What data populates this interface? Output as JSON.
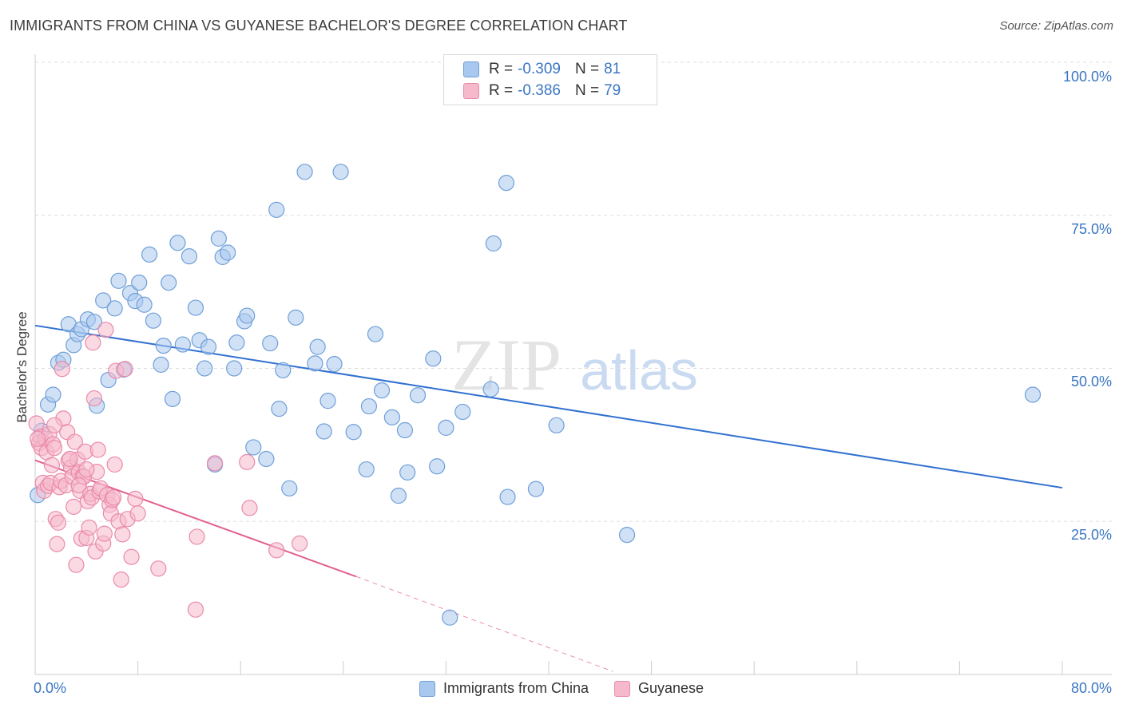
{
  "title": "IMMIGRANTS FROM CHINA VS GUYANESE BACHELOR'S DEGREE CORRELATION CHART",
  "source": "Source: ZipAtlas.com",
  "watermark": {
    "zip": "ZIP",
    "atlas": "atlas"
  },
  "legend_top": {
    "rows": [
      {
        "r_label": "R =",
        "r_value": "-0.309",
        "n_label": "N =",
        "n_value": "81"
      },
      {
        "r_label": "R =",
        "r_value": "-0.386",
        "n_label": "N =",
        "n_value": "79"
      }
    ]
  },
  "colors": {
    "china_fill": "#a9c8ef",
    "china_stroke": "#6f9fd8",
    "china_line": "#3070d0",
    "guyanese_fill": "#f6b9cc",
    "guyanese_stroke": "#ea8aaa",
    "guyanese_line": "#e06090",
    "grid": "#dddddd",
    "tick_text": "#3a76c4"
  },
  "chart_data": {
    "type": "scatter",
    "title": "IMMIGRANTS FROM CHINA VS GUYANESE BACHELOR'S DEGREE CORRELATION CHART",
    "xlabel": "",
    "ylabel": "Bachelor's Degree",
    "xlim": [
      0,
      80
    ],
    "ylim": [
      0,
      100
    ],
    "x_tick_labels": [
      "0.0%",
      "80.0%"
    ],
    "y_tick_labels": [
      "100.0%",
      "75.0%",
      "50.0%",
      "25.0%"
    ],
    "y_ticks": [
      100,
      75,
      50,
      25
    ],
    "grid": true,
    "legend_position": "top-center",
    "series": [
      {
        "name": "Immigrants from China",
        "r": -0.309,
        "n": 81,
        "trend": {
          "x0": 0,
          "y0": 57.0,
          "x1": 80,
          "y1": 30.5
        },
        "points": [
          [
            0.2,
            29.3
          ],
          [
            0.5,
            39.8
          ],
          [
            1.0,
            44.1
          ],
          [
            1.4,
            45.7
          ],
          [
            1.8,
            50.9
          ],
          [
            2.2,
            51.4
          ],
          [
            2.6,
            57.2
          ],
          [
            3.0,
            53.8
          ],
          [
            3.3,
            55.6
          ],
          [
            3.6,
            56.4
          ],
          [
            4.1,
            58.0
          ],
          [
            4.6,
            57.6
          ],
          [
            4.8,
            43.9
          ],
          [
            5.7,
            48.1
          ],
          [
            5.3,
            61.1
          ],
          [
            6.2,
            59.8
          ],
          [
            6.5,
            64.3
          ],
          [
            6.9,
            49.8
          ],
          [
            7.4,
            62.3
          ],
          [
            7.8,
            61.0
          ],
          [
            8.1,
            64.0
          ],
          [
            8.5,
            60.4
          ],
          [
            8.9,
            68.6
          ],
          [
            9.2,
            57.8
          ],
          [
            9.8,
            50.6
          ],
          [
            10.0,
            53.7
          ],
          [
            10.4,
            64.0
          ],
          [
            10.7,
            45.0
          ],
          [
            11.1,
            70.5
          ],
          [
            11.5,
            53.9
          ],
          [
            12.0,
            68.3
          ],
          [
            12.5,
            59.9
          ],
          [
            12.8,
            54.6
          ],
          [
            13.2,
            50.0
          ],
          [
            13.5,
            53.5
          ],
          [
            14.0,
            34.3
          ],
          [
            14.3,
            71.2
          ],
          [
            14.6,
            68.2
          ],
          [
            15.0,
            68.9
          ],
          [
            15.5,
            50.0
          ],
          [
            15.7,
            54.2
          ],
          [
            16.3,
            57.7
          ],
          [
            16.5,
            58.6
          ],
          [
            17.0,
            37.1
          ],
          [
            18.0,
            35.2
          ],
          [
            18.3,
            54.1
          ],
          [
            18.8,
            75.9
          ],
          [
            19.0,
            43.4
          ],
          [
            19.3,
            49.7
          ],
          [
            19.8,
            30.4
          ],
          [
            20.3,
            58.3
          ],
          [
            21.0,
            82.1
          ],
          [
            21.8,
            50.8
          ],
          [
            22.0,
            53.5
          ],
          [
            22.5,
            39.7
          ],
          [
            22.8,
            44.7
          ],
          [
            23.3,
            50.7
          ],
          [
            23.8,
            82.1
          ],
          [
            24.8,
            39.6
          ],
          [
            25.8,
            33.5
          ],
          [
            26.0,
            43.8
          ],
          [
            26.5,
            55.6
          ],
          [
            27.0,
            46.4
          ],
          [
            27.8,
            42.0
          ],
          [
            28.3,
            29.2
          ],
          [
            28.8,
            39.9
          ],
          [
            29.0,
            33.0
          ],
          [
            29.8,
            45.6
          ],
          [
            31.0,
            51.6
          ],
          [
            31.3,
            34.0
          ],
          [
            32.0,
            40.3
          ],
          [
            32.3,
            9.3
          ],
          [
            33.3,
            42.9
          ],
          [
            35.7,
            70.4
          ],
          [
            35.5,
            46.6
          ],
          [
            36.7,
            80.3
          ],
          [
            36.8,
            29.0
          ],
          [
            39.0,
            30.3
          ],
          [
            40.6,
            40.7
          ],
          [
            46.1,
            22.8
          ],
          [
            77.7,
            45.7
          ]
        ]
      },
      {
        "name": "Guyanese",
        "r": -0.386,
        "n": 79,
        "trend": {
          "x0": 0,
          "y0": 35.0,
          "x1": 25,
          "y1": 16.0
        },
        "trend_dashed_to": {
          "x": 45,
          "y": 0.5
        },
        "points": [
          [
            0.1,
            41.0
          ],
          [
            0.3,
            37.8
          ],
          [
            0.4,
            38.8
          ],
          [
            0.5,
            37.0
          ],
          [
            0.6,
            31.3
          ],
          [
            0.7,
            30.0
          ],
          [
            0.8,
            38.5
          ],
          [
            0.9,
            36.3
          ],
          [
            1.0,
            30.8
          ],
          [
            1.1,
            39.3
          ],
          [
            1.2,
            31.3
          ],
          [
            1.3,
            34.2
          ],
          [
            1.4,
            37.6
          ],
          [
            1.5,
            37.0
          ],
          [
            1.6,
            25.4
          ],
          [
            1.7,
            21.3
          ],
          [
            1.8,
            24.8
          ],
          [
            1.9,
            30.6
          ],
          [
            2.0,
            31.6
          ],
          [
            2.1,
            49.9
          ],
          [
            2.2,
            41.8
          ],
          [
            2.4,
            30.9
          ],
          [
            2.5,
            39.6
          ],
          [
            2.6,
            34.9
          ],
          [
            2.8,
            33.8
          ],
          [
            2.9,
            32.3
          ],
          [
            3.0,
            27.4
          ],
          [
            3.1,
            38.0
          ],
          [
            3.2,
            17.9
          ],
          [
            3.3,
            35.1
          ],
          [
            3.4,
            33.0
          ],
          [
            3.5,
            30.0
          ],
          [
            3.6,
            22.2
          ],
          [
            3.7,
            32.4
          ],
          [
            3.8,
            32.3
          ],
          [
            3.9,
            36.4
          ],
          [
            4.0,
            22.3
          ],
          [
            4.1,
            28.3
          ],
          [
            4.2,
            24.0
          ],
          [
            4.3,
            29.5
          ],
          [
            4.4,
            28.9
          ],
          [
            4.5,
            54.2
          ],
          [
            4.6,
            45.1
          ],
          [
            4.7,
            20.1
          ],
          [
            4.8,
            33.1
          ],
          [
            4.9,
            36.7
          ],
          [
            5.0,
            29.9
          ],
          [
            5.1,
            30.4
          ],
          [
            5.3,
            21.4
          ],
          [
            5.4,
            23.0
          ],
          [
            5.5,
            56.3
          ],
          [
            5.6,
            29.3
          ],
          [
            5.8,
            27.7
          ],
          [
            5.9,
            26.3
          ],
          [
            6.0,
            28.5
          ],
          [
            6.1,
            28.9
          ],
          [
            6.2,
            34.3
          ],
          [
            6.3,
            49.6
          ],
          [
            6.5,
            25.0
          ],
          [
            6.7,
            15.5
          ],
          [
            6.8,
            22.9
          ],
          [
            7.0,
            49.9
          ],
          [
            7.2,
            25.4
          ],
          [
            7.5,
            19.2
          ],
          [
            7.8,
            28.7
          ],
          [
            8.0,
            26.3
          ],
          [
            9.6,
            17.3
          ],
          [
            12.5,
            10.6
          ],
          [
            12.6,
            22.5
          ],
          [
            14.0,
            34.5
          ],
          [
            16.5,
            34.7
          ],
          [
            16.7,
            27.2
          ],
          [
            18.8,
            20.3
          ],
          [
            20.6,
            21.4
          ],
          [
            1.5,
            40.7
          ],
          [
            0.2,
            38.5
          ],
          [
            2.7,
            35.2
          ],
          [
            4.0,
            33.5
          ],
          [
            3.4,
            30.9
          ]
        ]
      }
    ]
  },
  "legend_bottom": [
    "Immigrants from China",
    "Guyanese"
  ]
}
